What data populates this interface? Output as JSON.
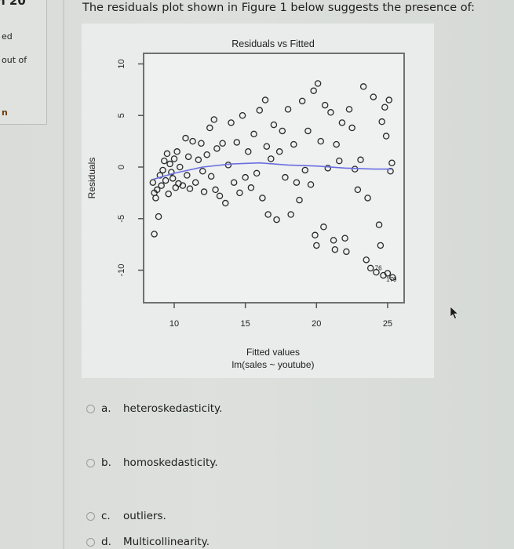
{
  "sidebar": {
    "question_number_fragment": "n 20",
    "status_fragment": "ed",
    "marks_fragment": "out of",
    "flag_fragment": "n"
  },
  "question": {
    "prompt": "The residuals plot shown in Figure 1 below suggests the presence of:"
  },
  "figure": {
    "title": "Residuals vs Fitted",
    "xlabel": "Fitted values",
    "sublabel": "lm(sales ~ youtube)",
    "ylabel": "Residuals"
  },
  "options": [
    {
      "letter": "a.",
      "text": "heteroskedasticity."
    },
    {
      "letter": "b.",
      "text": "homoskedasticity."
    },
    {
      "letter": "c.",
      "text": "outliers."
    },
    {
      "letter": "d.",
      "text": "Multicollinearity."
    }
  ],
  "chart_data": {
    "type": "scatter",
    "title": "Residuals vs Fitted",
    "xlabel": "Fitted values",
    "subtitle": "lm(sales ~ youtube)",
    "ylabel": "Residuals",
    "xlim": [
      8,
      26
    ],
    "ylim": [
      -12,
      11
    ],
    "xticks": [
      10,
      15,
      20,
      25
    ],
    "yticks": [
      -10,
      -5,
      0,
      5,
      10
    ],
    "grid": false,
    "smoother_color": "#6b6ee0",
    "smoother": [
      [
        8.5,
        -1.2
      ],
      [
        10,
        -0.6
      ],
      [
        12,
        0.0
      ],
      [
        14,
        0.3
      ],
      [
        16,
        0.4
      ],
      [
        18,
        0.2
      ],
      [
        20,
        0.1
      ],
      [
        22,
        -0.1
      ],
      [
        24,
        -0.2
      ],
      [
        25.3,
        -0.2
      ]
    ],
    "point_labels": [
      "76",
      "179"
    ],
    "points": [
      [
        8.5,
        -1.5
      ],
      [
        8.6,
        -2.5
      ],
      [
        8.7,
        -3.0
      ],
      [
        8.8,
        -2.2
      ],
      [
        8.6,
        -6.5
      ],
      [
        8.9,
        -4.8
      ],
      [
        9.0,
        -0.8
      ],
      [
        9.1,
        -1.8
      ],
      [
        9.2,
        -0.3
      ],
      [
        9.3,
        0.6
      ],
      [
        9.4,
        -1.3
      ],
      [
        9.5,
        1.3
      ],
      [
        9.6,
        -2.6
      ],
      [
        9.7,
        0.3
      ],
      [
        9.8,
        -0.5
      ],
      [
        9.9,
        -1.1
      ],
      [
        10.0,
        0.8
      ],
      [
        10.1,
        -2.0
      ],
      [
        10.2,
        1.5
      ],
      [
        10.3,
        -1.6
      ],
      [
        10.4,
        0.0
      ],
      [
        10.6,
        -1.8
      ],
      [
        10.8,
        2.8
      ],
      [
        10.9,
        -0.8
      ],
      [
        11.0,
        1.0
      ],
      [
        11.1,
        -2.1
      ],
      [
        11.3,
        2.5
      ],
      [
        11.5,
        -1.5
      ],
      [
        11.7,
        0.7
      ],
      [
        11.9,
        2.3
      ],
      [
        12.0,
        -0.4
      ],
      [
        12.1,
        -2.4
      ],
      [
        12.3,
        1.2
      ],
      [
        12.5,
        3.8
      ],
      [
        12.6,
        -0.9
      ],
      [
        12.8,
        4.6
      ],
      [
        12.9,
        -2.2
      ],
      [
        13.0,
        1.8
      ],
      [
        13.2,
        -2.8
      ],
      [
        13.4,
        2.3
      ],
      [
        13.6,
        -3.5
      ],
      [
        13.8,
        0.2
      ],
      [
        14.0,
        4.3
      ],
      [
        14.2,
        -1.5
      ],
      [
        14.4,
        2.4
      ],
      [
        14.6,
        -2.5
      ],
      [
        14.8,
        5.0
      ],
      [
        15.0,
        -1.0
      ],
      [
        15.2,
        1.5
      ],
      [
        15.4,
        -2.0
      ],
      [
        15.6,
        3.2
      ],
      [
        15.8,
        -0.6
      ],
      [
        16.0,
        5.5
      ],
      [
        16.2,
        -3.0
      ],
      [
        16.4,
        6.5
      ],
      [
        16.5,
        2.0
      ],
      [
        16.6,
        -4.6
      ],
      [
        16.8,
        0.8
      ],
      [
        17.0,
        4.1
      ],
      [
        17.2,
        -5.1
      ],
      [
        17.4,
        1.5
      ],
      [
        17.6,
        3.5
      ],
      [
        17.8,
        -1.0
      ],
      [
        18.0,
        5.6
      ],
      [
        18.2,
        -4.6
      ],
      [
        18.4,
        2.2
      ],
      [
        18.6,
        -1.5
      ],
      [
        18.8,
        -3.2
      ],
      [
        19.0,
        6.4
      ],
      [
        19.2,
        -0.3
      ],
      [
        19.4,
        3.5
      ],
      [
        19.6,
        -1.7
      ],
      [
        19.8,
        7.4
      ],
      [
        19.9,
        -6.6
      ],
      [
        20.0,
        -7.6
      ],
      [
        20.1,
        8.1
      ],
      [
        20.3,
        2.5
      ],
      [
        20.5,
        -5.8
      ],
      [
        20.6,
        6.0
      ],
      [
        20.8,
        -0.1
      ],
      [
        21.0,
        5.3
      ],
      [
        21.2,
        -7.1
      ],
      [
        21.3,
        -8.0
      ],
      [
        21.4,
        2.2
      ],
      [
        21.6,
        0.6
      ],
      [
        21.8,
        4.3
      ],
      [
        22.0,
        -6.9
      ],
      [
        22.1,
        -8.2
      ],
      [
        22.3,
        5.6
      ],
      [
        22.5,
        3.8
      ],
      [
        22.7,
        -0.2
      ],
      [
        22.9,
        -2.2
      ],
      [
        23.1,
        0.7
      ],
      [
        23.3,
        7.8
      ],
      [
        23.5,
        -9.0
      ],
      [
        23.6,
        -3.0
      ],
      [
        23.8,
        -9.8
      ],
      [
        24.0,
        6.8
      ],
      [
        24.2,
        -10.2
      ],
      [
        24.4,
        -5.6
      ],
      [
        24.5,
        -7.6
      ],
      [
        24.6,
        4.4
      ],
      [
        24.7,
        -10.5
      ],
      [
        24.8,
        5.8
      ],
      [
        24.9,
        3.0
      ],
      [
        25.0,
        -10.3
      ],
      [
        25.1,
        6.5
      ],
      [
        25.2,
        -0.4
      ],
      [
        25.3,
        0.4
      ],
      [
        25.35,
        -10.7
      ]
    ]
  }
}
